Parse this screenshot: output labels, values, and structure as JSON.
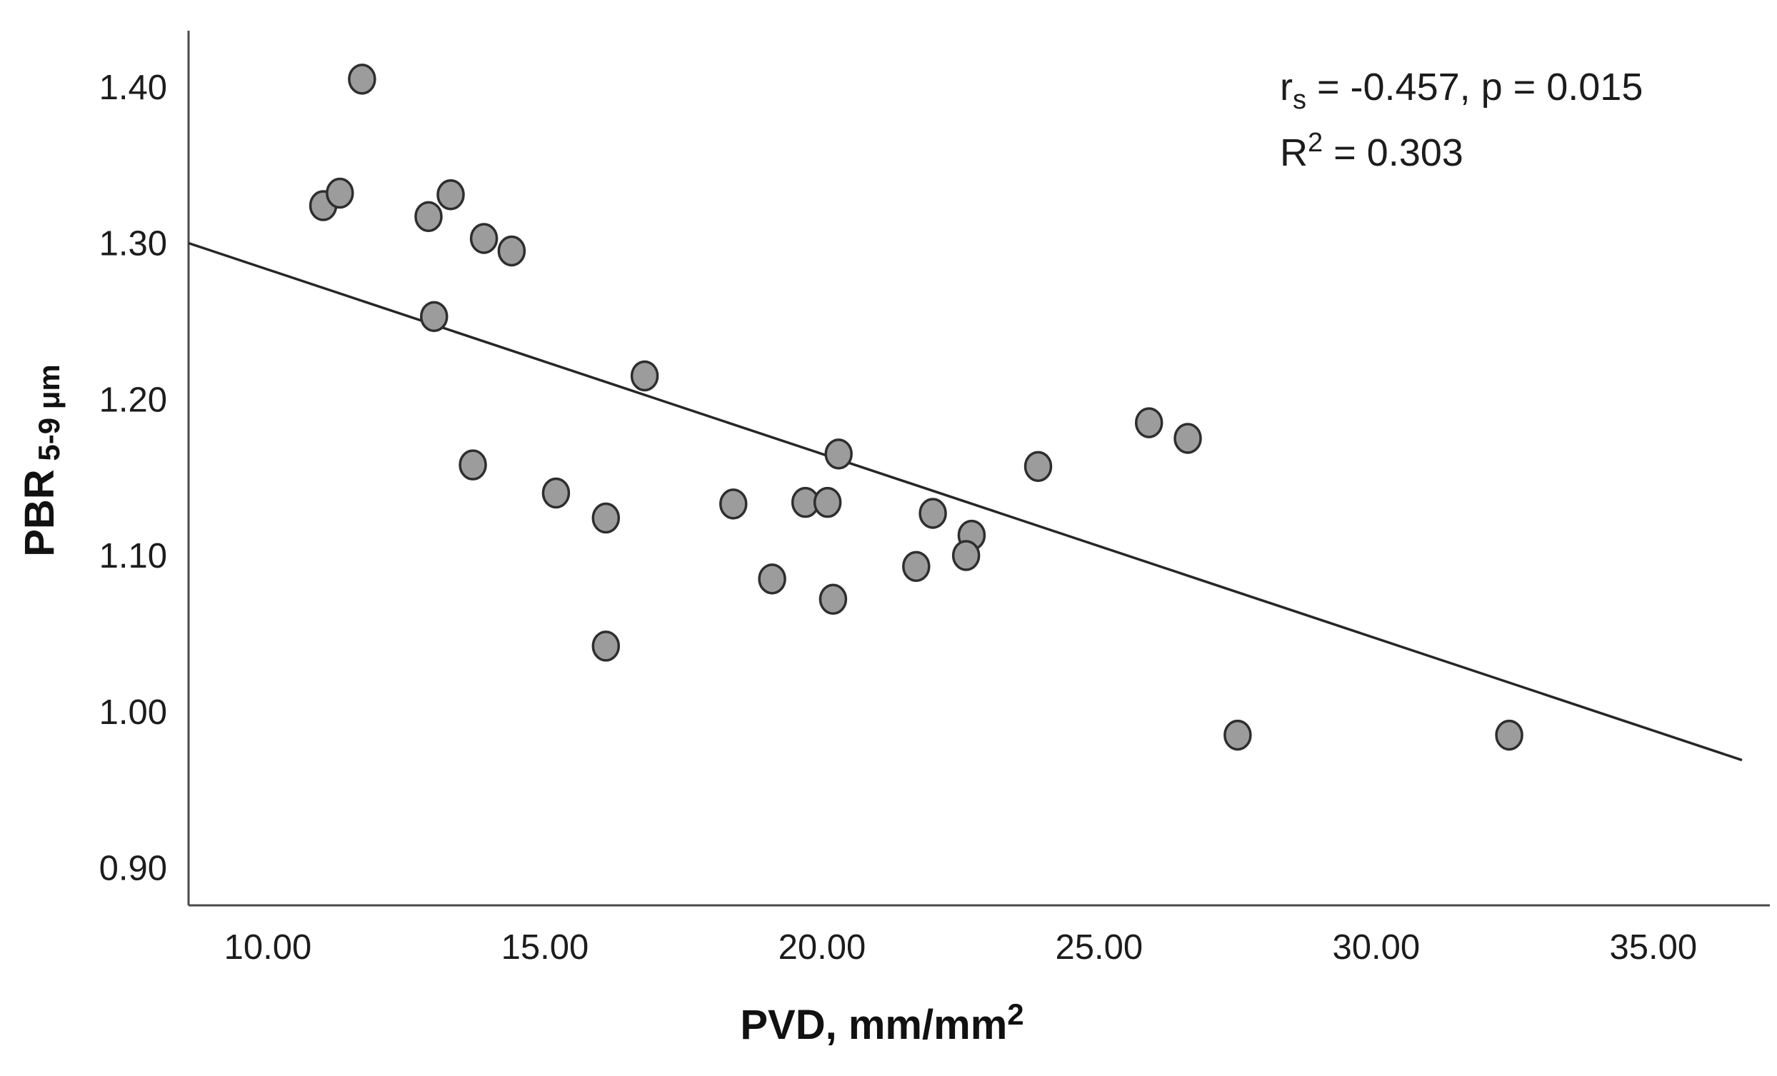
{
  "figure": {
    "background_color": "#ffffff",
    "text_color": "#1c1c1c"
  },
  "chart_data": {
    "type": "scatter",
    "title": "",
    "xlabel_main": "PVD, mm/mm",
    "xlabel_sup": "2",
    "ylabel_main": "PBR",
    "ylabel_sub": " 5-9 μm",
    "x_axis": {
      "ticks": [
        {
          "v": 10,
          "label": "10.00"
        },
        {
          "v": 15,
          "label": "15.00"
        },
        {
          "v": 20,
          "label": "20.00"
        },
        {
          "v": 25,
          "label": "25.00"
        },
        {
          "v": 30,
          "label": "30.00"
        },
        {
          "v": 35,
          "label": "35.00"
        }
      ],
      "range": [
        8.57,
        37.0
      ],
      "grid": false
    },
    "y_axis": {
      "ticks": [
        {
          "v": 0.9,
          "label": "0.90"
        },
        {
          "v": 1.0,
          "label": "1.00"
        },
        {
          "v": 1.1,
          "label": "1.10"
        },
        {
          "v": 1.2,
          "label": "1.20"
        },
        {
          "v": 1.3,
          "label": "1.30"
        },
        {
          "v": 1.4,
          "label": "1.40"
        }
      ],
      "range": [
        0.876,
        1.436
      ],
      "grid": false
    },
    "points": [
      [
        11.7,
        1.405
      ],
      [
        11.0,
        1.324
      ],
      [
        11.3,
        1.332
      ],
      [
        12.9,
        1.317
      ],
      [
        13.3,
        1.331
      ],
      [
        13.9,
        1.303
      ],
      [
        14.4,
        1.295
      ],
      [
        13.0,
        1.253
      ],
      [
        16.8,
        1.215
      ],
      [
        13.7,
        1.158
      ],
      [
        15.2,
        1.14
      ],
      [
        16.1,
        1.124
      ],
      [
        18.4,
        1.133
      ],
      [
        19.7,
        1.134
      ],
      [
        20.1,
        1.134
      ],
      [
        20.3,
        1.165
      ],
      [
        22.0,
        1.127
      ],
      [
        22.7,
        1.113
      ],
      [
        22.6,
        1.1
      ],
      [
        21.7,
        1.093
      ],
      [
        19.1,
        1.085
      ],
      [
        20.2,
        1.072
      ],
      [
        16.1,
        1.042
      ],
      [
        23.9,
        1.157
      ],
      [
        25.9,
        1.185
      ],
      [
        26.6,
        1.175
      ],
      [
        27.5,
        0.985
      ],
      [
        32.4,
        0.985
      ]
    ],
    "regression_line": {
      "x1": 8.57,
      "y1": 1.3,
      "x2": 36.6,
      "y2": 0.969
    },
    "annotation": {
      "line1_r": "r",
      "line1_sub": "s",
      "line1_rest": " = -0.457, p = 0.015",
      "line2_r": "R",
      "line2_sup": "2",
      "line2_rest": " = 0.303"
    },
    "point_fill_color": "#9c9c9c",
    "point_stroke_color": "#2e2e2e",
    "axis_color": "#4a4a4a",
    "line_color": "#262626",
    "legend": "none"
  }
}
